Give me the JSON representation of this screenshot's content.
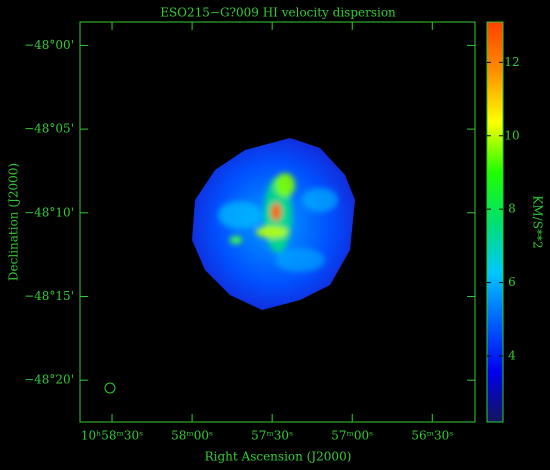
{
  "chart_data": {
    "type": "image",
    "title": "ESO215−G?009   HI velocity dispersion",
    "x_label": "Right Ascension (J2000)",
    "y_label": "Declination (J2000)",
    "colorbar_label": "KM/S**2",
    "xlim": [
      39522,
      39374
    ],
    "xticks": [
      {
        "value": 39510,
        "label": "10ʰ58ᵐ30ˢ"
      },
      {
        "value": 39480,
        "label": "58ᵐ00ˢ"
      },
      {
        "value": 39450,
        "label": "57ᵐ30ˢ"
      },
      {
        "value": 39420,
        "label": "57ᵐ00ˢ"
      },
      {
        "value": 39390,
        "label": "56ᵐ30ˢ"
      }
    ],
    "ylim": [
      -2902.5,
      -2878.6
    ],
    "yticks": [
      {
        "value": -2880,
        "label": "−48°00'"
      },
      {
        "value": -2885,
        "label": "−48°05'"
      },
      {
        "value": -2890,
        "label": "−48°10'"
      },
      {
        "value": -2895,
        "label": "−48°15'"
      },
      {
        "value": -2900,
        "label": "−48°20'"
      }
    ],
    "clim": [
      2.2,
      13.1
    ],
    "cticks": [
      4,
      6,
      8,
      10,
      12
    ],
    "colormap": [
      "#15155a",
      "#0000ee",
      "#0060ff",
      "#00c8ff",
      "#00e070",
      "#20ff00",
      "#ffff00",
      "#ff9000",
      "#ff4000"
    ],
    "axis_color": "#33cc33"
  }
}
